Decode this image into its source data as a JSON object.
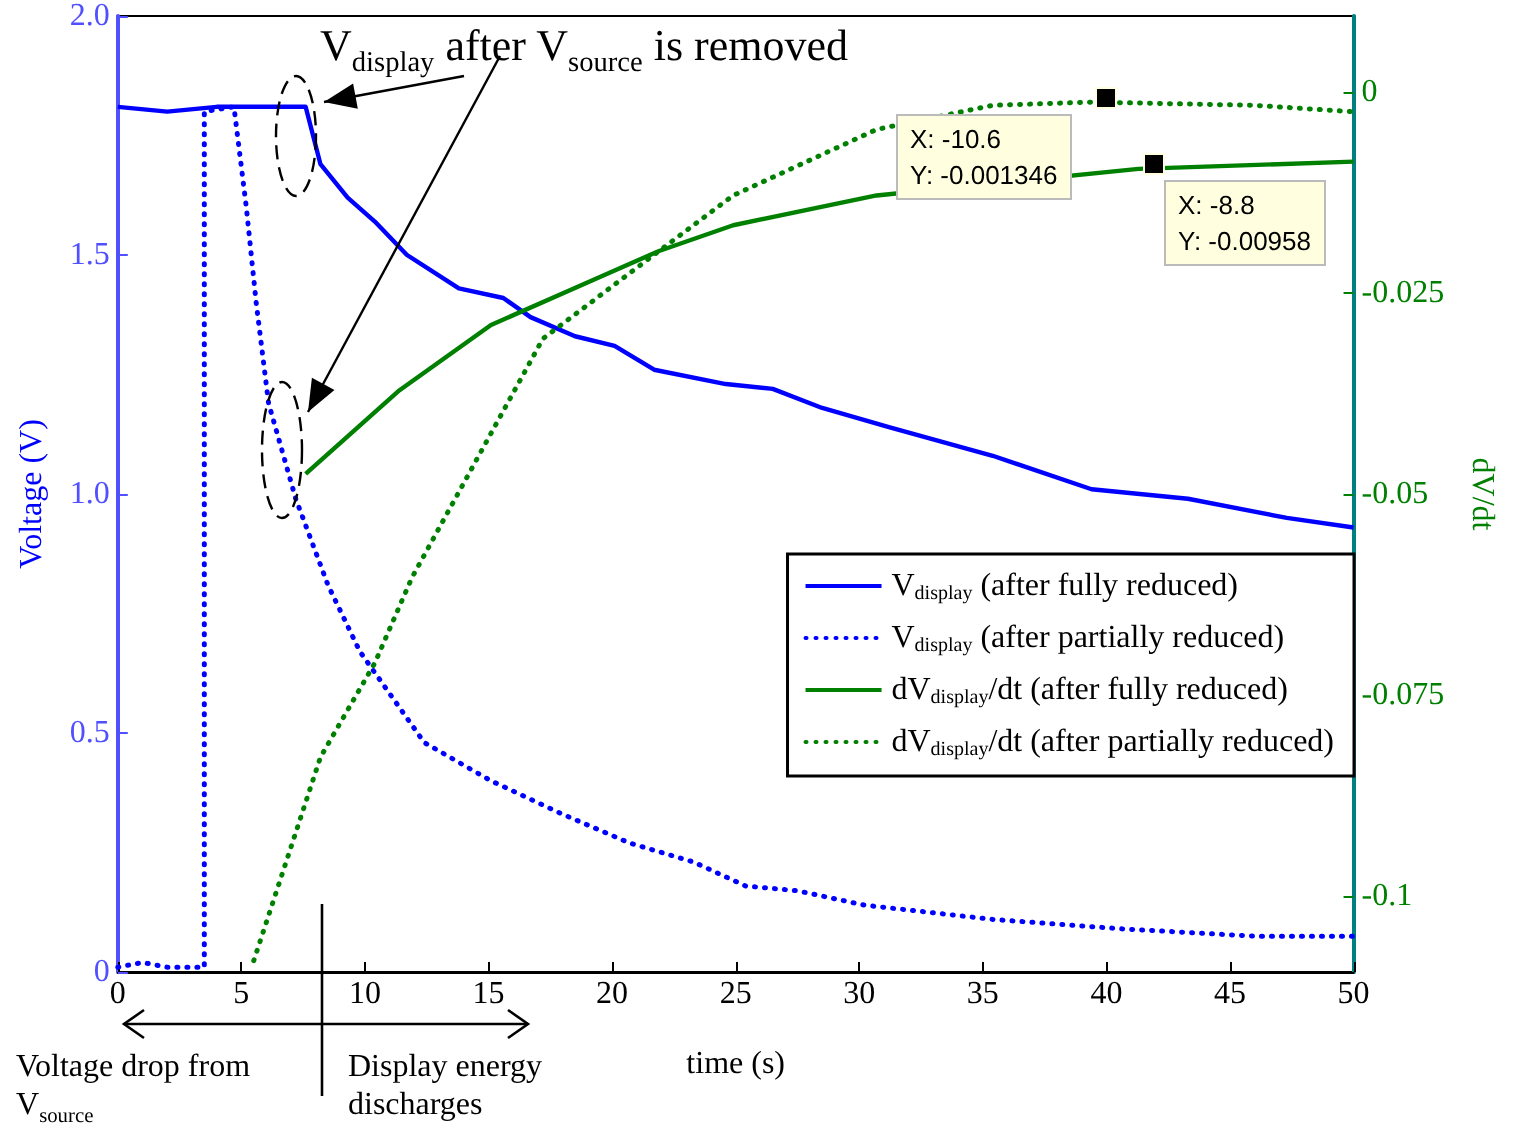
{
  "chart_data": {
    "type": "line",
    "xlabel": "time (s)",
    "ylabel": "Voltage (V)",
    "y2label": "dV/dt",
    "annotations": [
      "V$_{display}$ after V$_{source}$ is removed",
      "Voltage drop from\nV$_{source}$",
      "Display energy\ndischarges",
      "X: -10.6\nY: -0.001346",
      "X: -8.8\nY: -0.00958"
    ],
    "series": [
      {
        "name": "V$_{display}$ (after fully reduced)",
        "color": "#0000ff",
        "line_style": "solid",
        "x": [
          0,
          2,
          4,
          6,
          7.6,
          8.2,
          9.3,
          10.4,
          11.7,
          13.8,
          15.6,
          16.7,
          18.5,
          20.1,
          21.7,
          24.6,
          26.5,
          28.5,
          31.2,
          35.4,
          39.4,
          43.3,
          47.3,
          50
        ],
        "values": [
          1.81,
          1.8,
          1.81,
          1.81,
          1.81,
          1.69,
          1.62,
          1.57,
          1.5,
          1.43,
          1.41,
          1.37,
          1.33,
          1.31,
          1.26,
          1.23,
          1.22,
          1.18,
          1.14,
          1.08,
          1.01,
          0.99,
          0.95,
          0.93
        ]
      },
      {
        "name": "V$_{display}$ (after partially reduced)",
        "color": "#0000ff",
        "line_style": "dotted",
        "x": [
          0,
          1,
          2,
          3,
          3.5,
          3.5,
          4.7,
          5.2,
          5.6,
          6.1,
          7.2,
          8.5,
          9.8,
          12.4,
          15.1,
          18,
          20.7,
          23.3,
          25.4,
          27.5,
          30.2,
          35.4,
          40.7,
          46,
          50
        ],
        "values": [
          0.01,
          0.02,
          0.01,
          0.01,
          0.01,
          1.8,
          1.81,
          1.6,
          1.4,
          1.19,
          0.99,
          0.81,
          0.67,
          0.48,
          0.4,
          0.33,
          0.27,
          0.23,
          0.18,
          0.17,
          0.14,
          0.11,
          0.09,
          0.075,
          0.075
        ]
      },
      {
        "name": "dV$_{display}$/dt (after fully reduced)",
        "color": "#008000",
        "line_style": "solid",
        "axis": "y2",
        "x": [
          7.6,
          11.4,
          15.1,
          19.3,
          21.9,
          24.9,
          30.7,
          41.3,
          50
        ],
        "values": [
          -0.0475,
          -0.0371,
          -0.029,
          -0.0233,
          -0.0198,
          -0.0166,
          -0.0129,
          -0.0096,
          -0.0087
        ]
      },
      {
        "name": "dV$_{display}$/dt (after partially reduced)",
        "color": "#008000",
        "line_style": "dotted",
        "axis": "y2",
        "x": [
          5.5,
          8.2,
          10.4,
          11.9,
          17.2,
          21.9,
          24.9,
          30.7,
          35.4,
          39.4,
          46,
          50
        ],
        "values": [
          -0.108,
          -0.0827,
          -0.071,
          -0.0604,
          -0.0307,
          -0.0198,
          -0.0129,
          -0.0047,
          -0.0017,
          -0.0013,
          -0.0017,
          -0.0025
        ]
      }
    ],
    "xlim": [
      0,
      50
    ],
    "xticks": [
      0,
      5,
      10,
      15,
      20,
      25,
      30,
      35,
      40,
      45,
      50
    ],
    "ylim": [
      0,
      2
    ],
    "yticks": [
      0,
      {
        "value": 0.5,
        "label": "0.5"
      },
      {
        "value": 1,
        "label": "1.0"
      },
      {
        "value": 1.5,
        "label": "1.5"
      },
      {
        "value": 2,
        "label": "2.0"
      }
    ],
    "y2lim": [
      -0.1094,
      0.0094
    ],
    "y2ticks": [
      -0.1,
      -0.075,
      -0.05,
      -0.025,
      0
    ],
    "legend": "right",
    "grid": false,
    "marker": "none"
  }
}
